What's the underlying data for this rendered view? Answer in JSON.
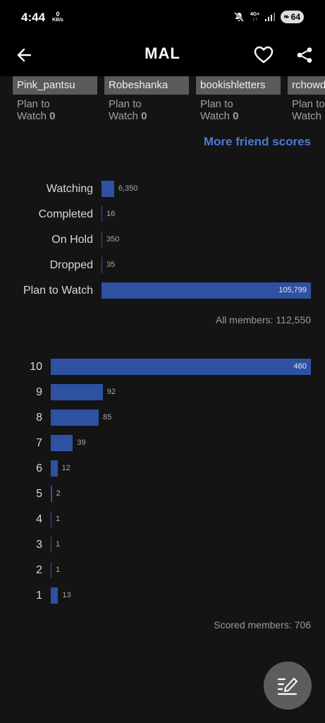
{
  "status_bar": {
    "time": "4:44",
    "speed_value": "0",
    "speed_unit": "KB/s",
    "network": "4G+",
    "battery": "64"
  },
  "app_bar": {
    "title": "MAL",
    "icons": [
      "back-arrow-icon",
      "heart-icon",
      "share-icon"
    ]
  },
  "friends": [
    {
      "name": "Pink_pantsu",
      "status_line1": "Plan to",
      "status_line2": "Watch",
      "score": "0"
    },
    {
      "name": "Robeshanka",
      "status_line1": "Plan to",
      "status_line2": "Watch",
      "score": "0"
    },
    {
      "name": "bookishletters",
      "status_line1": "Plan to",
      "status_line2": "Watch",
      "score": "0"
    },
    {
      "name": "rchowd",
      "status_line1": "Plan to",
      "status_line2": "Watch",
      "score": ""
    }
  ],
  "more_friend_scores": "More friend scores",
  "status_chart": {
    "type": "bar",
    "categories": [
      "Watching",
      "Completed",
      "On Hold",
      "Dropped",
      "Plan to Watch"
    ],
    "values": [
      6350,
      16,
      350,
      35,
      105799
    ],
    "value_labels": [
      "6,350",
      "16",
      "350",
      "35",
      "105,799"
    ],
    "summary": "All members: 112,550",
    "color": "#2e51a2"
  },
  "score_chart": {
    "type": "bar",
    "categories": [
      "10",
      "9",
      "8",
      "7",
      "6",
      "5",
      "4",
      "3",
      "2",
      "1"
    ],
    "values": [
      460,
      92,
      85,
      39,
      12,
      2,
      1,
      1,
      1,
      13
    ],
    "value_labels": [
      "460",
      "92",
      "85",
      "39",
      "12",
      "2",
      "1",
      "1",
      "1",
      "13"
    ],
    "summary": "Scored members: 706",
    "color": "#2e51a2"
  },
  "fab": {
    "icon": "edit-list-icon"
  }
}
